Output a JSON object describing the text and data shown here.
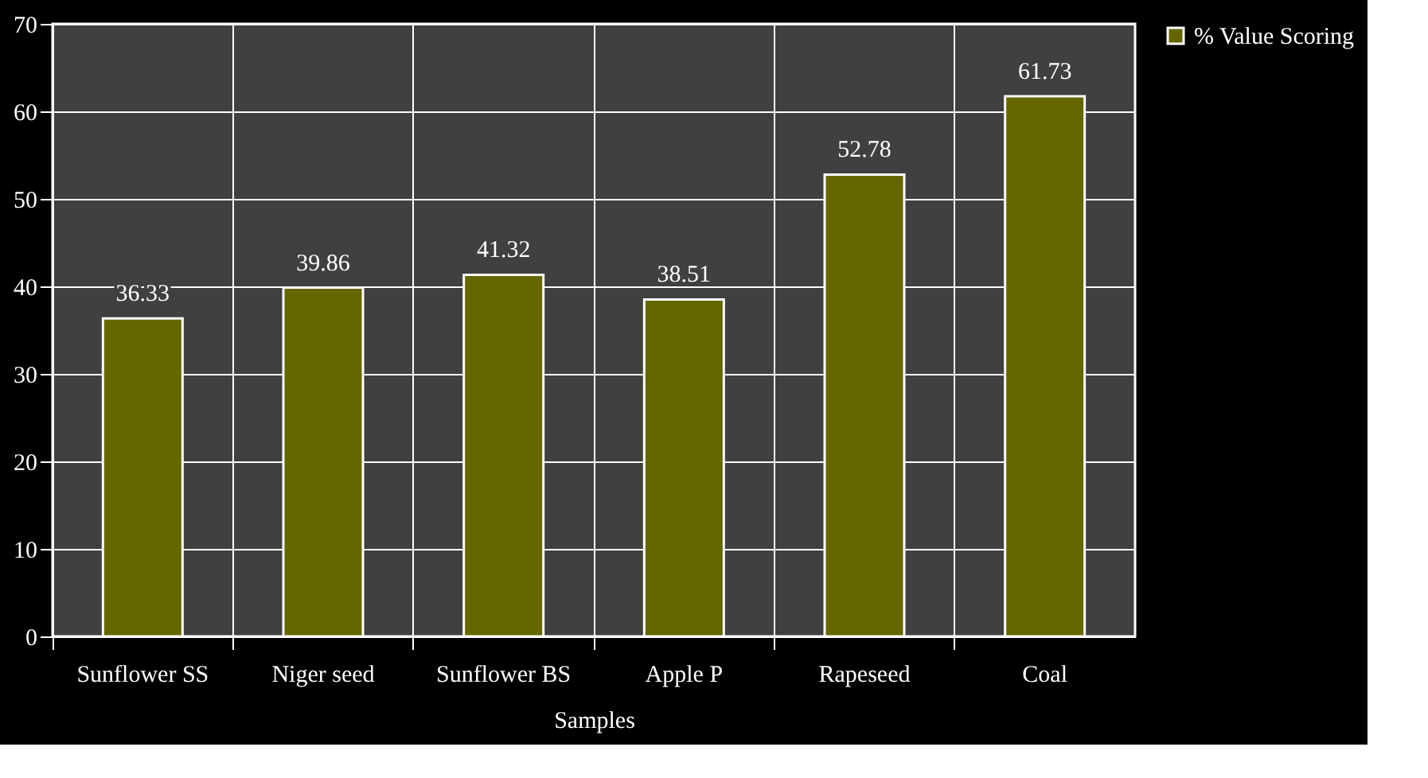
{
  "chart_data": {
    "type": "bar",
    "xlabel": "Samples",
    "categories": [
      "Sunflower SS",
      "Niger seed",
      "Sunflower BS",
      "Apple P",
      "Rapeseed",
      "Coal"
    ],
    "series": [
      {
        "name": "% Value Scoring",
        "color": "#666600",
        "values": [
          36.33,
          39.86,
          41.32,
          38.51,
          52.78,
          61.73
        ]
      }
    ],
    "ylim": [
      0,
      70
    ],
    "yticks": [
      0,
      10,
      20,
      30,
      40,
      50,
      60,
      70
    ],
    "grid": true,
    "legend": "right",
    "data_labels": true
  }
}
